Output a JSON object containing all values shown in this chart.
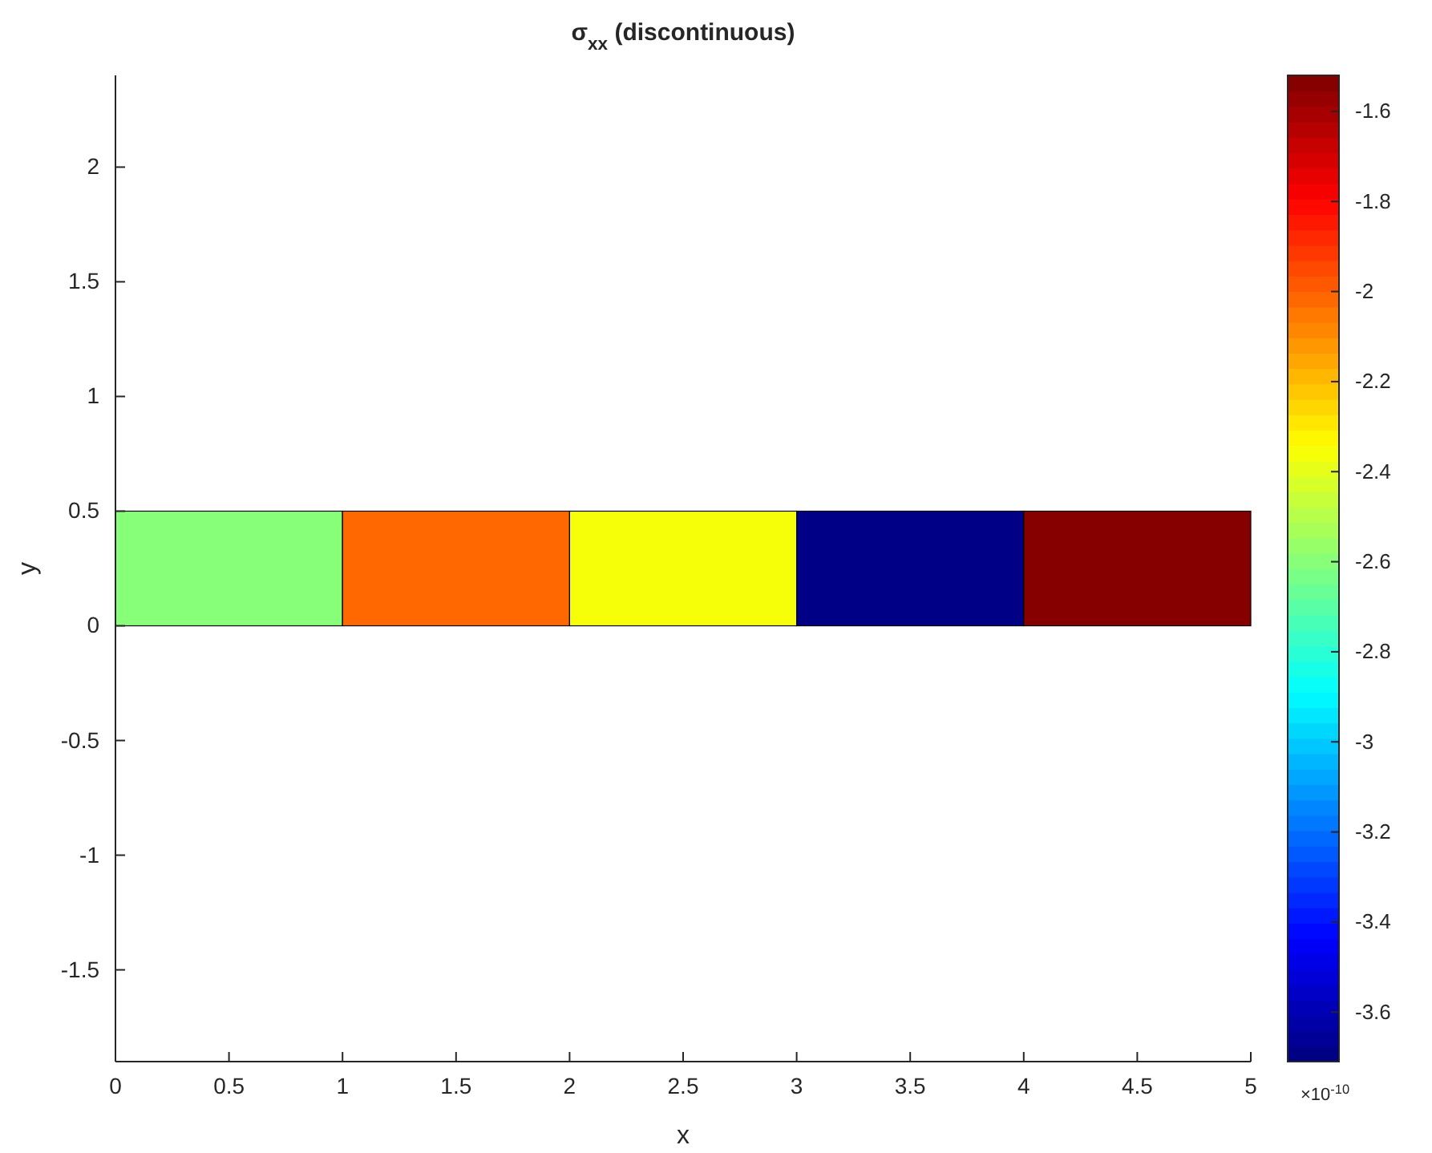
{
  "chart_data": {
    "type": "bar",
    "title": "σ$_{xx}$ (discontinuous)",
    "xlabel": "x",
    "ylabel": "y",
    "clabel": "×10$^{-10}$",
    "x": [
      0.5,
      1.5,
      2.5,
      3.5,
      4.5
    ],
    "values": [
      0.5,
      0.5,
      0.5,
      0.5,
      0.5
    ],
    "cvalues": [
      -2.6,
      -2.0,
      -2.35,
      -3.71,
      -1.52
    ],
    "xlim": [
      0,
      5
    ],
    "xticks": [
      0,
      0.5,
      1,
      1.5,
      2,
      2.5,
      3,
      3.5,
      4,
      4.5,
      5
    ],
    "ylim": [
      -1.9,
      2.4
    ],
    "yticks": [
      -1.5,
      -1,
      -0.5,
      0,
      0.5,
      1,
      1.5,
      2
    ],
    "clim": [
      -3.71,
      -1.52
    ],
    "cticks": [
      -3.6,
      -3.4,
      -3.2,
      -3,
      -2.8,
      -2.6,
      -2.4,
      -2.2,
      -2,
      -1.8,
      -1.6
    ],
    "grid": false
  }
}
